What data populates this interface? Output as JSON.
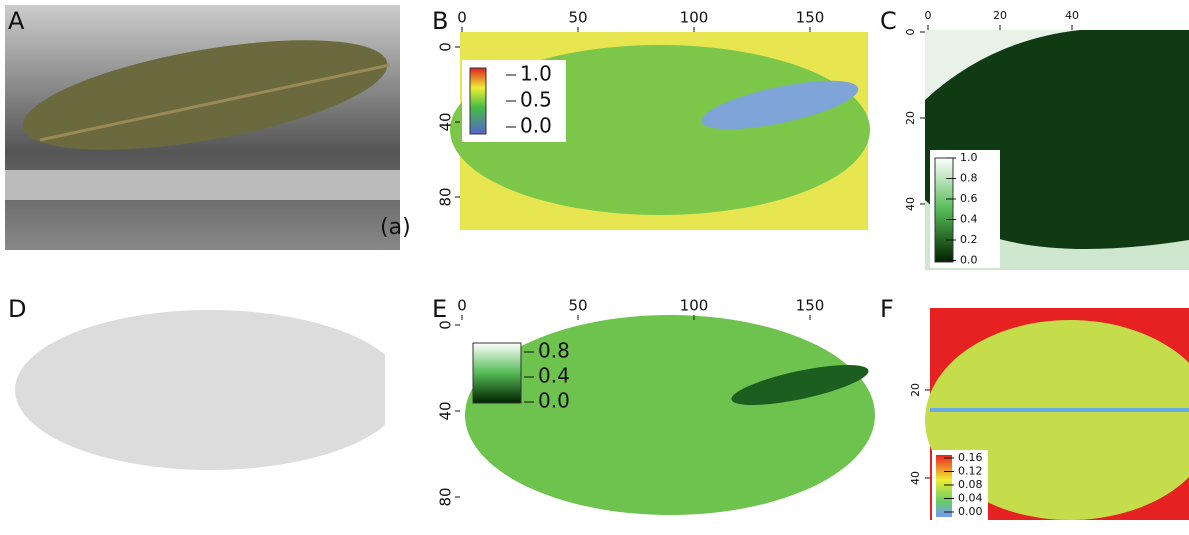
{
  "panels": [
    {
      "label": "A",
      "annotation": "(a)"
    },
    {
      "label": "B",
      "xticks": [
        "0",
        "50",
        "100",
        "150"
      ],
      "yticks": [
        "0",
        "40",
        "80"
      ],
      "colorbar_ticks": [
        "1.0",
        "0.5",
        "0.0"
      ]
    },
    {
      "label": "C",
      "xticks": [
        "0",
        "20",
        "40"
      ],
      "yticks": [
        "0",
        "20",
        "40"
      ],
      "colorbar_ticks": [
        "1.0",
        "0.8",
        "0.6",
        "0.4",
        "0.2",
        "0.0"
      ]
    },
    {
      "label": "D"
    },
    {
      "label": "E",
      "xticks": [
        "0",
        "50",
        "100",
        "150"
      ],
      "yticks": [
        "0",
        "40",
        "80"
      ],
      "colorbar_ticks": [
        "0.8",
        "0.4",
        "0.0"
      ]
    },
    {
      "label": "F",
      "yticks": [
        "20",
        "40"
      ],
      "colorbar_ticks": [
        "0.16",
        "0.12",
        "0.08",
        "0.04",
        "0.00"
      ]
    }
  ]
}
